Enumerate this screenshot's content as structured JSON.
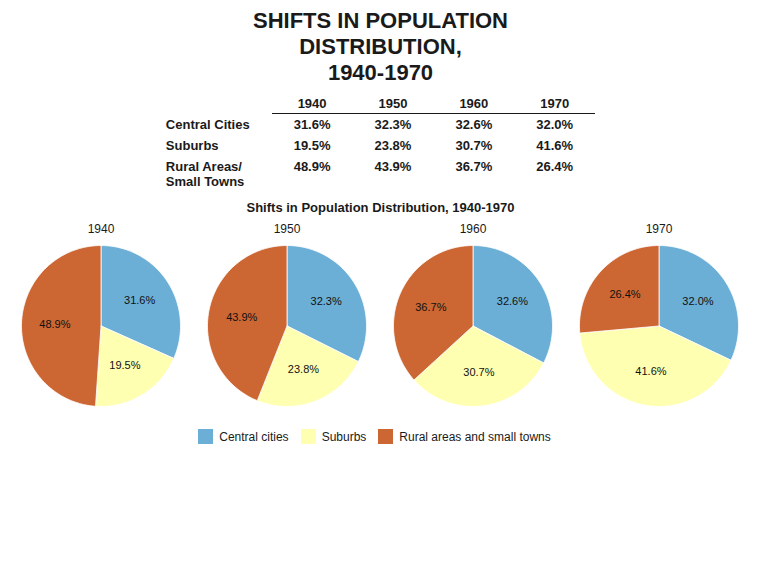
{
  "title": [
    "SHIFTS IN POPULATION",
    "DISTRIBUTION,",
    "1940-1970"
  ],
  "table": {
    "columns": [
      "1940",
      "1950",
      "1960",
      "1970"
    ],
    "rows": [
      {
        "label": [
          "Central Cities"
        ],
        "values": [
          31.6,
          32.3,
          32.6,
          32.0
        ],
        "value_labels": [
          "31.6%",
          "32.3%",
          "32.6%",
          "32.0%"
        ]
      },
      {
        "label": [
          "Suburbs"
        ],
        "values": [
          19.5,
          23.8,
          30.7,
          41.6
        ],
        "value_labels": [
          "19.5%",
          "23.8%",
          "30.7%",
          "41.6%"
        ]
      },
      {
        "label": [
          "Rural Areas/",
          "Small Towns"
        ],
        "values": [
          48.9,
          43.9,
          36.7,
          26.4
        ],
        "value_labels": [
          "48.9%",
          "43.9%",
          "36.7%",
          "26.4%"
        ]
      }
    ]
  },
  "chart_data": {
    "type": "pie",
    "title": "Shifts in Population Distribution, 1940-1970",
    "categories": [
      "Central cities",
      "Suburbs",
      "Rural areas and small towns"
    ],
    "colors": [
      "#6baed6",
      "#ffffb2",
      "#cc6633"
    ],
    "legend": "bottom",
    "data_labels": true,
    "series": [
      {
        "name": "1940",
        "values": [
          31.6,
          19.5,
          48.9
        ],
        "value_labels": [
          "31.6%",
          "19.5%",
          "48.9%"
        ]
      },
      {
        "name": "1950",
        "values": [
          32.3,
          23.8,
          43.9
        ],
        "value_labels": [
          "32.3%",
          "23.8%",
          "43.9%"
        ]
      },
      {
        "name": "1960",
        "values": [
          32.6,
          30.7,
          36.7
        ],
        "value_labels": [
          "32.6%",
          "30.7%",
          "36.7%"
        ]
      },
      {
        "name": "1970",
        "values": [
          32.0,
          41.6,
          26.4
        ],
        "value_labels": [
          "32.0%",
          "41.6%",
          "26.4%"
        ]
      }
    ]
  }
}
